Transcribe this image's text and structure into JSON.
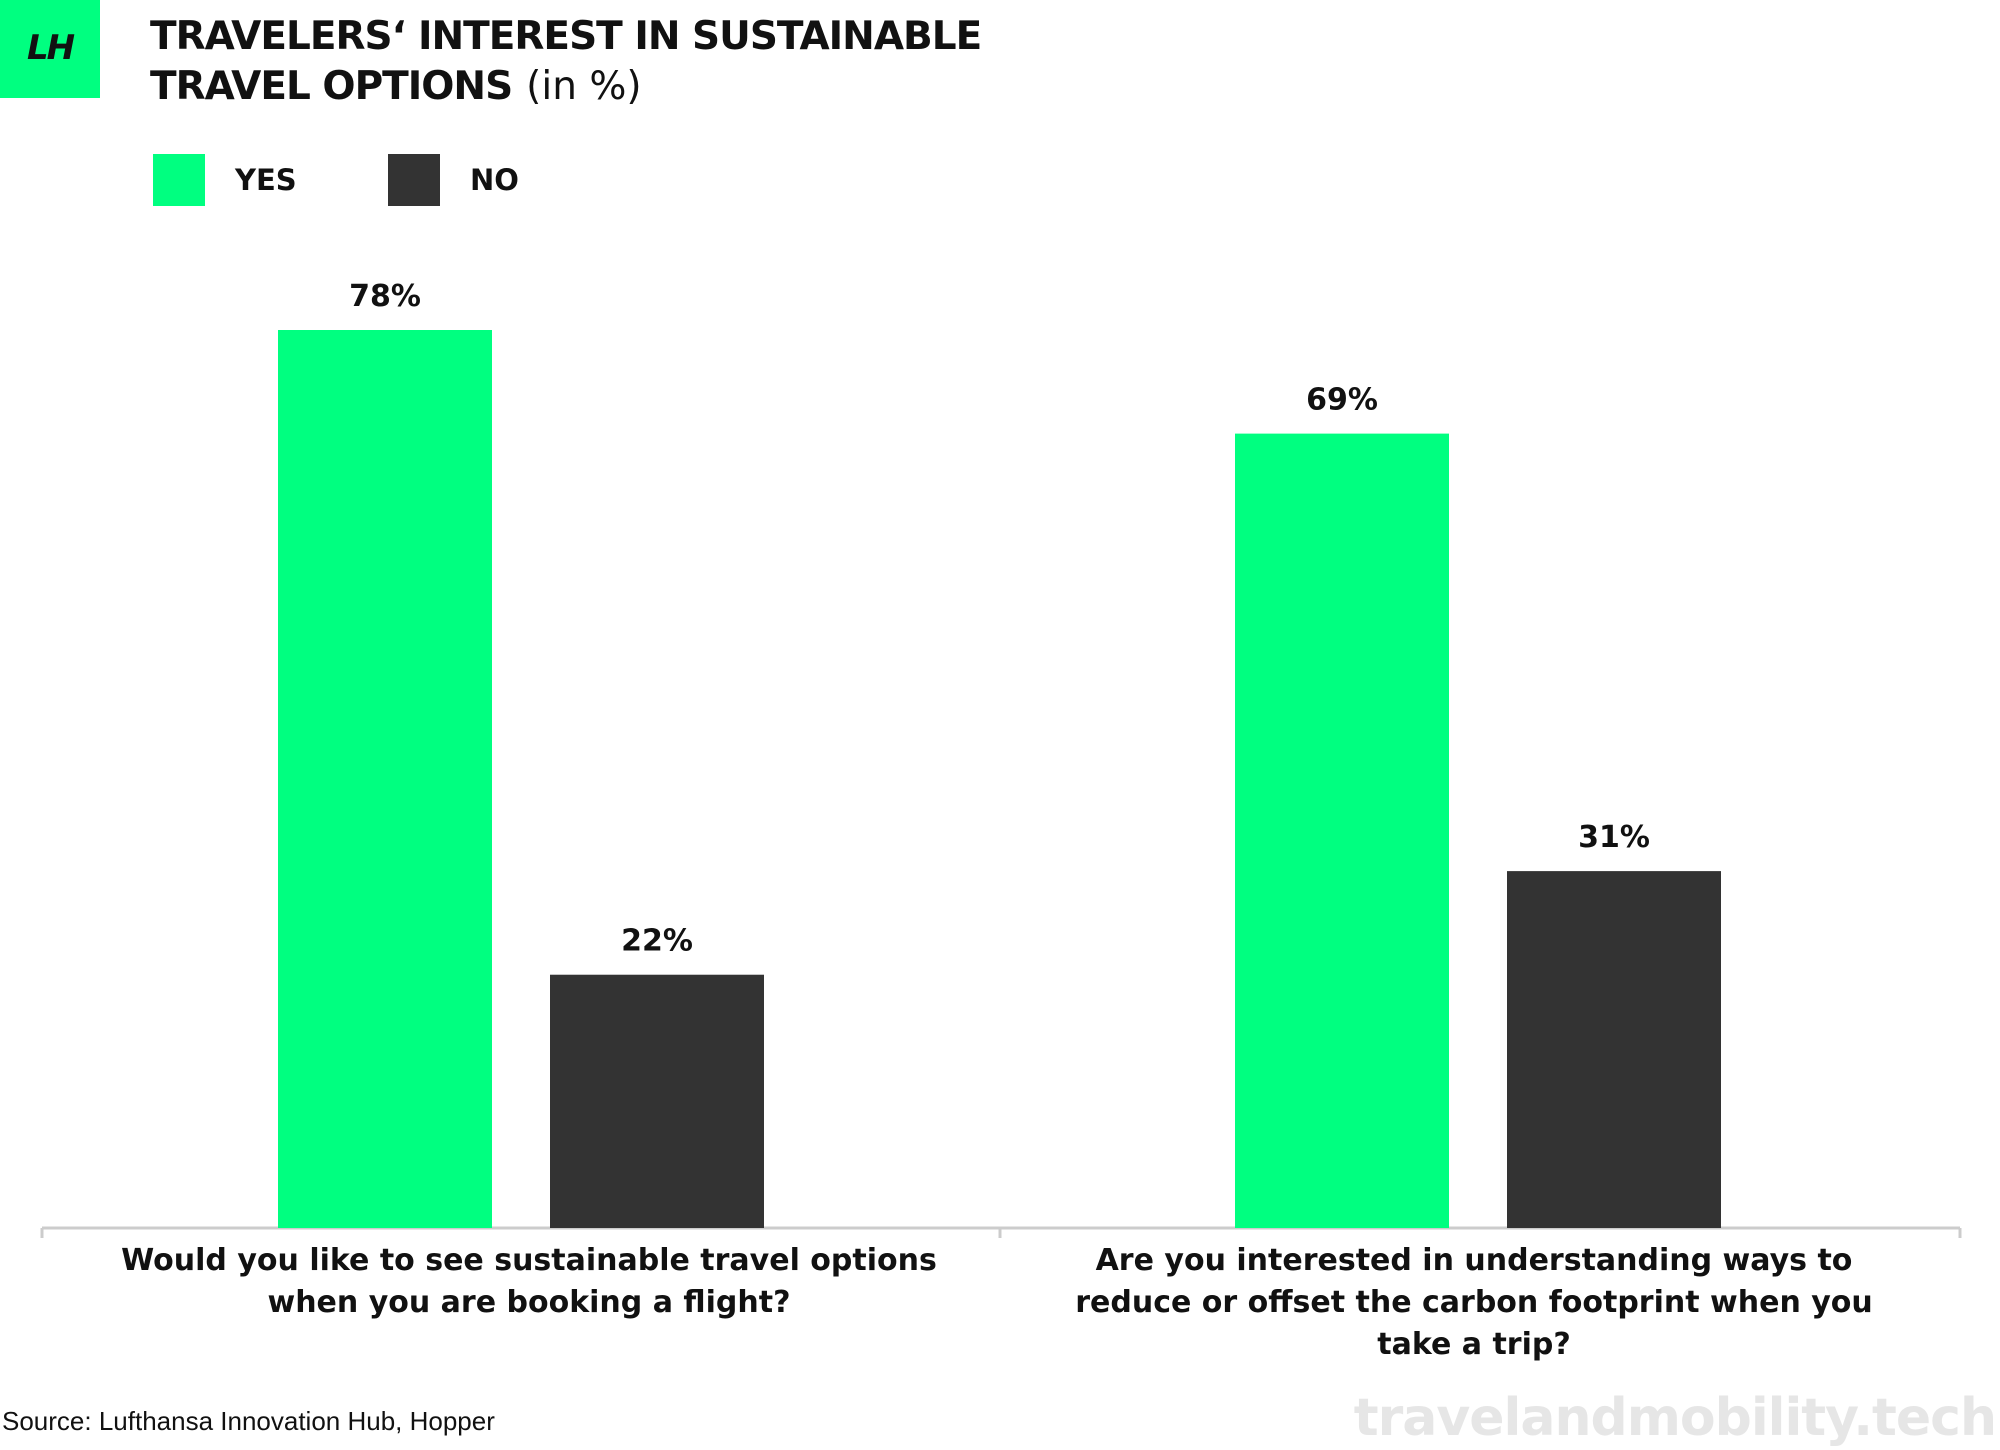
{
  "logo": {
    "text": "LH"
  },
  "header": {
    "title_line1": "TRAVELERS‘ INTEREST IN SUSTAINABLE",
    "title_line2": "TRAVEL OPTIONS",
    "unit": "(in %)"
  },
  "footer": {
    "source": "Source: Lufthansa Innovation Hub, Hopper",
    "watermark": "travelandmobility.tech"
  },
  "colors": {
    "yes": "#00ff80",
    "no": "#333333",
    "axis": "#cccccc",
    "text": "#111111"
  },
  "chart_data": {
    "type": "bar",
    "categories": [
      [
        "Would you like to see sustainable travel options",
        "when you are booking a flight?"
      ],
      [
        "Are you interested in understanding ways to",
        "reduce or offset the carbon footprint when you",
        "take a trip?"
      ]
    ],
    "series": [
      {
        "name": "YES",
        "values": [
          78,
          69
        ],
        "labels": [
          "78%",
          "69%"
        ]
      },
      {
        "name": "NO",
        "values": [
          22,
          31
        ],
        "labels": [
          "22%",
          "31%"
        ]
      }
    ],
    "ylim": [
      0,
      100
    ],
    "grid": false,
    "legend": "top-left"
  }
}
